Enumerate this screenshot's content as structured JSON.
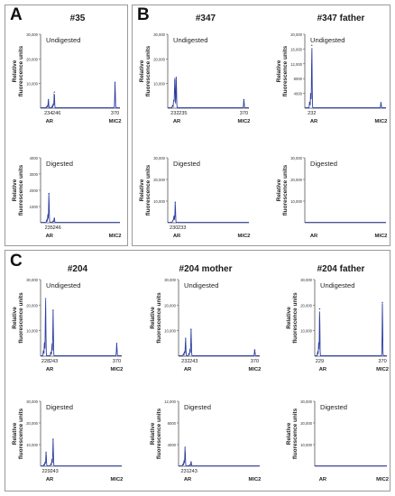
{
  "figure": {
    "panels": [
      {
        "letter": "A"
      },
      {
        "letter": "B"
      },
      {
        "letter": "C"
      }
    ],
    "titles": [
      "#35",
      "#347",
      "#347  father",
      "#204",
      "#204  mother",
      "#204  father"
    ],
    "ylabel_line1": "Relative",
    "ylabel_line2": "fluorescence units",
    "x_regions": [
      "AR",
      "MIC2"
    ]
  },
  "colors": {
    "trace": "#2e3fa0",
    "axis": "#555555",
    "frame": "#9a9a9a"
  },
  "chart_data": [
    {
      "type": "line",
      "title": "#35",
      "label": "Undigested",
      "ylim": [
        0,
        30000
      ],
      "yticks": [
        10000,
        20000,
        30000
      ],
      "ytick_labels": [
        "10,000",
        "20,000",
        "30,000"
      ],
      "peaks": [
        {
          "x": 234,
          "y": 3500
        },
        {
          "x": 246,
          "y": 6500
        },
        {
          "x": 370,
          "y": 10500
        }
      ],
      "xtick_labels": [
        {
          "x": 234,
          "text": "234"
        },
        {
          "x": 246,
          "text": "246"
        },
        {
          "x": 370,
          "text": "370"
        }
      ],
      "categories": [
        "AR",
        "MIC2"
      ]
    },
    {
      "type": "line",
      "title": "#35",
      "label": "Digested",
      "ylim": [
        0,
        4000
      ],
      "yticks": [
        1000,
        2000,
        3000,
        4000
      ],
      "ytick_labels": [
        "1000",
        "2000",
        "3000",
        "4000"
      ],
      "peaks": [
        {
          "x": 235,
          "y": 1800
        },
        {
          "x": 246,
          "y": 280
        }
      ],
      "xtick_labels": [
        {
          "x": 235,
          "text": "235"
        },
        {
          "x": 246,
          "text": "246"
        }
      ],
      "categories": [
        "AR",
        "MIC2"
      ]
    },
    {
      "type": "line",
      "title": "#347",
      "label": "Undigested",
      "ylim": [
        0,
        30000
      ],
      "yticks": [
        10000,
        20000,
        30000
      ],
      "ytick_labels": [
        "10,000",
        "20,000",
        "30,000"
      ],
      "peaks": [
        {
          "x": 232,
          "y": 11000
        },
        {
          "x": 235,
          "y": 12500
        },
        {
          "x": 370,
          "y": 3500
        }
      ],
      "xtick_labels": [
        {
          "x": 232,
          "text": "232"
        },
        {
          "x": 235,
          "text": "235"
        },
        {
          "x": 370,
          "text": "370"
        }
      ],
      "categories": [
        "AR",
        "MIC2"
      ]
    },
    {
      "type": "line",
      "title": "#347  father",
      "label": "Undigested",
      "ylim": [
        0,
        20000
      ],
      "yticks": [
        4000,
        8000,
        12000,
        16000,
        20000
      ],
      "ytick_labels": [
        "4000",
        "8000",
        "12,000",
        "16,000",
        "20,000"
      ],
      "peaks": [
        {
          "x": 232,
          "y": 17000
        },
        {
          "x": 370,
          "y": 1500
        }
      ],
      "xtick_labels": [
        {
          "x": 232,
          "text": "232"
        }
      ],
      "categories": [
        "AR",
        "MIC2"
      ]
    },
    {
      "type": "line",
      "title": "#347",
      "label": "Digested",
      "ylim": [
        0,
        30000
      ],
      "yticks": [
        10000,
        20000,
        30000
      ],
      "ytick_labels": [
        "10,000",
        "20,000",
        "30,000"
      ],
      "peaks": [
        {
          "x": 230,
          "y": 1500
        },
        {
          "x": 233,
          "y": 9500
        }
      ],
      "xtick_labels": [
        {
          "x": 230,
          "text": "230"
        },
        {
          "x": 233,
          "text": "233"
        }
      ],
      "categories": [
        "AR",
        "MIC2"
      ]
    },
    {
      "type": "line",
      "title": "#347  father",
      "label": "Digested",
      "ylim": [
        0,
        30000
      ],
      "yticks": [
        10000,
        20000,
        30000
      ],
      "ytick_labels": [
        "10,000",
        "20,000",
        "30,000"
      ],
      "peaks": [],
      "xtick_labels": [],
      "categories": [
        "AR",
        "MIC2"
      ]
    },
    {
      "type": "line",
      "title": "#204",
      "label": "Undigested",
      "ylim": [
        0,
        30000
      ],
      "yticks": [
        10000,
        20000,
        30000
      ],
      "ytick_labels": [
        "10,000",
        "20,000",
        "30,000"
      ],
      "peaks": [
        {
          "x": 228,
          "y": 22500
        },
        {
          "x": 243,
          "y": 18000
        },
        {
          "x": 370,
          "y": 5000
        }
      ],
      "xtick_labels": [
        {
          "x": 228,
          "text": "228"
        },
        {
          "x": 243,
          "text": "243"
        },
        {
          "x": 370,
          "text": "370"
        }
      ],
      "categories": [
        "AR",
        "MIC2"
      ]
    },
    {
      "type": "line",
      "title": "#204  mother",
      "label": "Undigested",
      "ylim": [
        0,
        30000
      ],
      "yticks": [
        10000,
        20000,
        30000
      ],
      "ytick_labels": [
        "10,000",
        "20,000",
        "30,000"
      ],
      "peaks": [
        {
          "x": 232,
          "y": 7000
        },
        {
          "x": 243,
          "y": 10500
        },
        {
          "x": 370,
          "y": 2500
        }
      ],
      "xtick_labels": [
        {
          "x": 232,
          "text": "232"
        },
        {
          "x": 243,
          "text": "243"
        },
        {
          "x": 370,
          "text": "370"
        }
      ],
      "categories": [
        "AR",
        "MIC2"
      ]
    },
    {
      "type": "line",
      "title": "#204  father",
      "label": "Undigested",
      "ylim": [
        0,
        30000
      ],
      "yticks": [
        10000,
        20000,
        30000
      ],
      "ytick_labels": [
        "10,000",
        "20,000",
        "30,000"
      ],
      "peaks": [
        {
          "x": 229,
          "y": 18500
        },
        {
          "x": 370,
          "y": 21000
        }
      ],
      "xtick_labels": [
        {
          "x": 229,
          "text": "229"
        },
        {
          "x": 370,
          "text": "370"
        }
      ],
      "categories": [
        "AR",
        "MIC2"
      ]
    },
    {
      "type": "line",
      "title": "#204",
      "label": "Digested",
      "ylim": [
        0,
        30000
      ],
      "yticks": [
        10000,
        20000,
        30000
      ],
      "ytick_labels": [
        "10,000",
        "20,000",
        "30,000"
      ],
      "peaks": [
        {
          "x": 229,
          "y": 6500
        },
        {
          "x": 243,
          "y": 12500
        }
      ],
      "xtick_labels": [
        {
          "x": 229,
          "text": "229"
        },
        {
          "x": 243,
          "text": "243"
        }
      ],
      "categories": [
        "AR",
        "MIC2"
      ]
    },
    {
      "type": "line",
      "title": "#204  mother",
      "label": "Digested",
      "ylim": [
        0,
        12000
      ],
      "yticks": [
        4000,
        8000,
        12000
      ],
      "ytick_labels": [
        "4000",
        "8000",
        "12,000"
      ],
      "peaks": [
        {
          "x": 231,
          "y": 3500
        },
        {
          "x": 243,
          "y": 800
        }
      ],
      "xtick_labels": [
        {
          "x": 231,
          "text": "231"
        },
        {
          "x": 243,
          "text": "243"
        }
      ],
      "categories": [
        "AR",
        "MIC2"
      ]
    },
    {
      "type": "line",
      "title": "#204  father",
      "label": "Digested",
      "ylim": [
        0,
        30000
      ],
      "yticks": [
        10000,
        20000,
        30000
      ],
      "ytick_labels": [
        "10,000",
        "20,000",
        "30,000"
      ],
      "peaks": [],
      "xtick_labels": [],
      "categories": [
        "AR",
        "MIC2"
      ]
    }
  ]
}
